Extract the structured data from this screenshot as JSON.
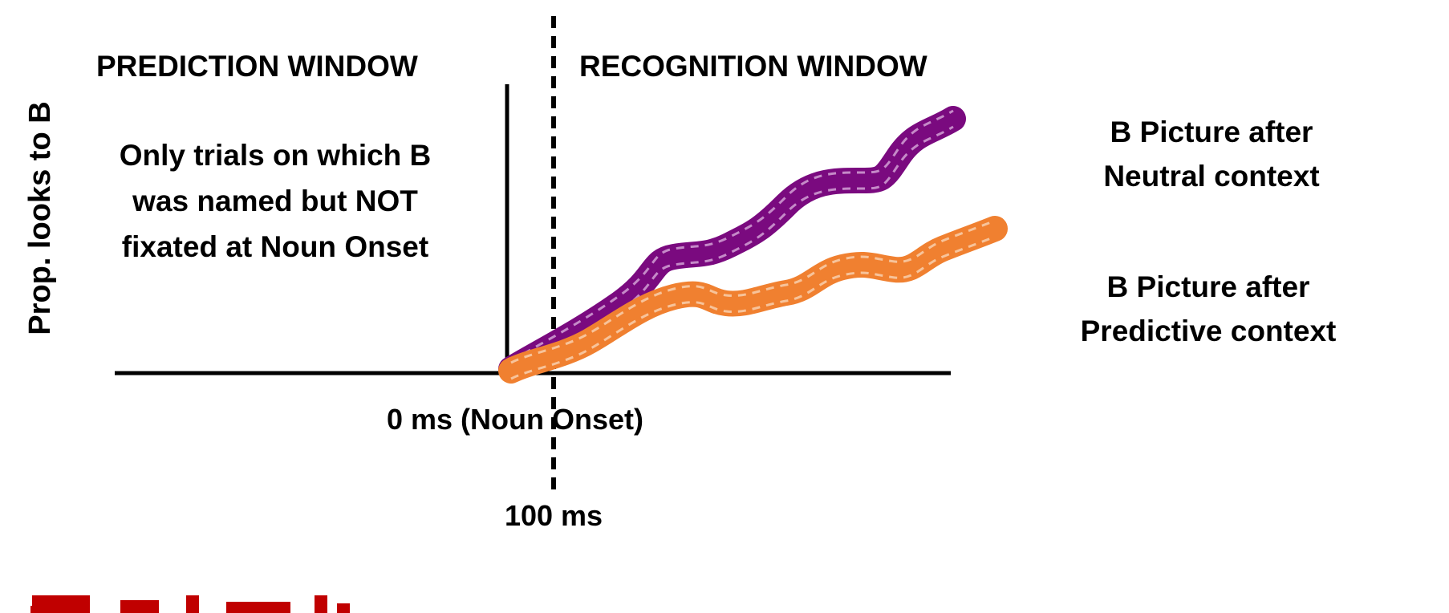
{
  "headings": {
    "prediction": "PREDICTION WINDOW",
    "recognition": "RECOGNITION WINDOW"
  },
  "y_axis_label": "Prop. looks to B",
  "note": [
    "Only trials on which B",
    "was named but NOT",
    "fixated at Noun Onset"
  ],
  "x_origin_label": "0 ms (Noun Onset)",
  "divider_label": "100 ms",
  "series": [
    {
      "name": "B Picture after Neutral context",
      "label_lines": [
        "B Picture after",
        "Neutral context"
      ],
      "color": "#7a0a7f"
    },
    {
      "name": "B Picture after Predictive context",
      "label_lines": [
        "B Picture after",
        "Predictive context"
      ],
      "color": "#f08030"
    }
  ],
  "bottom_fragment_color": "#c00000"
}
